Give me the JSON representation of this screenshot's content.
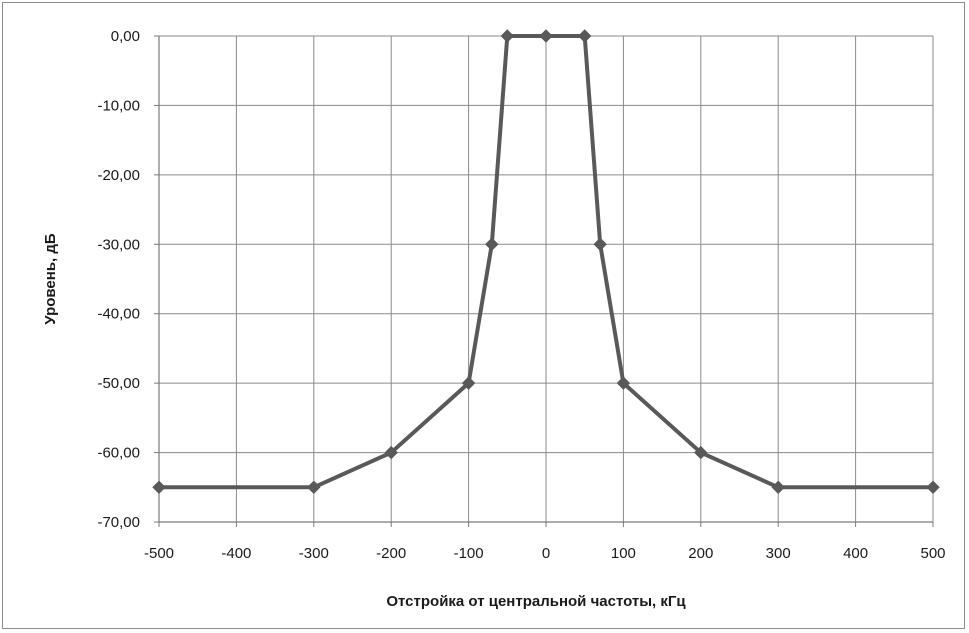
{
  "chart_data": {
    "type": "line",
    "title": "",
    "xlabel": "Отстройка от центральной частоты, кГц",
    "ylabel": "Уровень, дБ",
    "xlim": [
      -500,
      500
    ],
    "ylim": [
      -70,
      0
    ],
    "grid": true,
    "legend": "none",
    "x_ticks": [
      -500,
      -400,
      -300,
      -200,
      -100,
      0,
      100,
      200,
      300,
      400,
      500
    ],
    "x_tick_labels": [
      "-500",
      "-400",
      "-300",
      "-200",
      "-100",
      "0",
      "100",
      "200",
      "300",
      "400",
      "500"
    ],
    "y_ticks": [
      0,
      -10,
      -20,
      -30,
      -40,
      -50,
      -60,
      -70
    ],
    "y_tick_labels": [
      "0,00",
      "-10,00",
      "-20,00",
      "-30,00",
      "-40,00",
      "-50,00",
      "-60,00",
      "-70,00"
    ],
    "series": [
      {
        "color": "#595959",
        "marker": "diamond",
        "x": [
          -500,
          -300,
          -200,
          -100,
          -70,
          -50,
          0,
          50,
          70,
          100,
          200,
          300,
          500
        ],
        "y": [
          -65,
          -65,
          -60,
          -50,
          -30,
          0,
          0,
          0,
          -30,
          -50,
          -60,
          -65,
          -65
        ]
      }
    ]
  }
}
